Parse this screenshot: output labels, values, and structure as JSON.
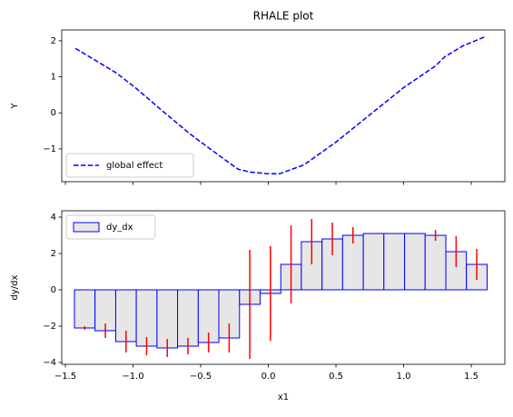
{
  "chart_data": [
    {
      "type": "line",
      "title": "RHALE plot",
      "ylabel": "Y",
      "x": [
        -1.426,
        -1.124,
        -0.977,
        -0.775,
        -0.574,
        -0.372,
        -0.225,
        -0.138,
        -0.003,
        0.084,
        0.265,
        0.5,
        0.768,
        1.003,
        1.238,
        1.305,
        1.439,
        1.607
      ],
      "series": [
        {
          "name": "global effect",
          "color": "#0000ff",
          "linestyle": "dashed",
          "values": [
            1.79,
            1.11,
            0.68,
            0.03,
            -0.6,
            -1.16,
            -1.56,
            -1.64,
            -1.69,
            -1.69,
            -1.44,
            -0.81,
            0.0,
            0.71,
            1.31,
            1.56,
            1.86,
            2.12
          ]
        }
      ],
      "xlim": [
        -1.527,
        1.748
      ],
      "ylim": [
        -1.91,
        2.3
      ],
      "xticks": [
        -1.5,
        -1,
        -0.5,
        0,
        0.5,
        1,
        1.5
      ],
      "xtick_labels": false,
      "yticks": [
        {
          "value": -1,
          "label": "−1"
        },
        0,
        1,
        2
      ],
      "legend": "lower left"
    },
    {
      "type": "histogram",
      "xlabel": "x1",
      "ylabel": "dy/dx",
      "bins": [
        -1.433,
        -1.281,
        -1.128,
        -0.976,
        -0.823,
        -0.671,
        -0.518,
        -0.366,
        -0.213,
        -0.061,
        0.092,
        0.244,
        0.397,
        0.549,
        0.702,
        0.854,
        1.007,
        1.159,
        1.312,
        1.464,
        1.617
      ],
      "series": [
        {
          "name": "dy_dx",
          "color": "#e6e6e6",
          "edgecolor": "#0000ff",
          "values": [
            -2.1,
            -2.25,
            -2.85,
            -3.1,
            -3.2,
            -3.1,
            -2.9,
            -2.65,
            -0.8,
            -0.2,
            1.4,
            2.65,
            2.8,
            3.0,
            3.1,
            3.1,
            3.1,
            3.0,
            2.1,
            1.4
          ]
        }
      ],
      "errors": [
        0.1,
        0.4,
        0.6,
        0.5,
        0.5,
        0.45,
        0.55,
        0.8,
        3.0,
        2.6,
        2.15,
        1.25,
        0.9,
        0.45,
        0,
        0,
        0,
        0.3,
        0.85,
        0.85
      ],
      "error_color": "#ff0000",
      "xlim": [
        -1.527,
        1.748
      ],
      "ylim": [
        -4.1,
        4.35
      ],
      "xticks": [
        {
          "value": -1.5,
          "label": "−1.5"
        },
        {
          "value": -1,
          "label": "−1.0"
        },
        {
          "value": -0.5,
          "label": "−0.5"
        },
        {
          "value": 0,
          "label": "0.0"
        },
        0.5,
        {
          "value": 1,
          "label": "1.0"
        },
        1.5
      ],
      "xtick_labels": true,
      "yticks": [
        {
          "value": -4,
          "label": "−4"
        },
        {
          "value": -2,
          "label": "−2"
        },
        0,
        2,
        4
      ],
      "legend": "upper left"
    }
  ]
}
